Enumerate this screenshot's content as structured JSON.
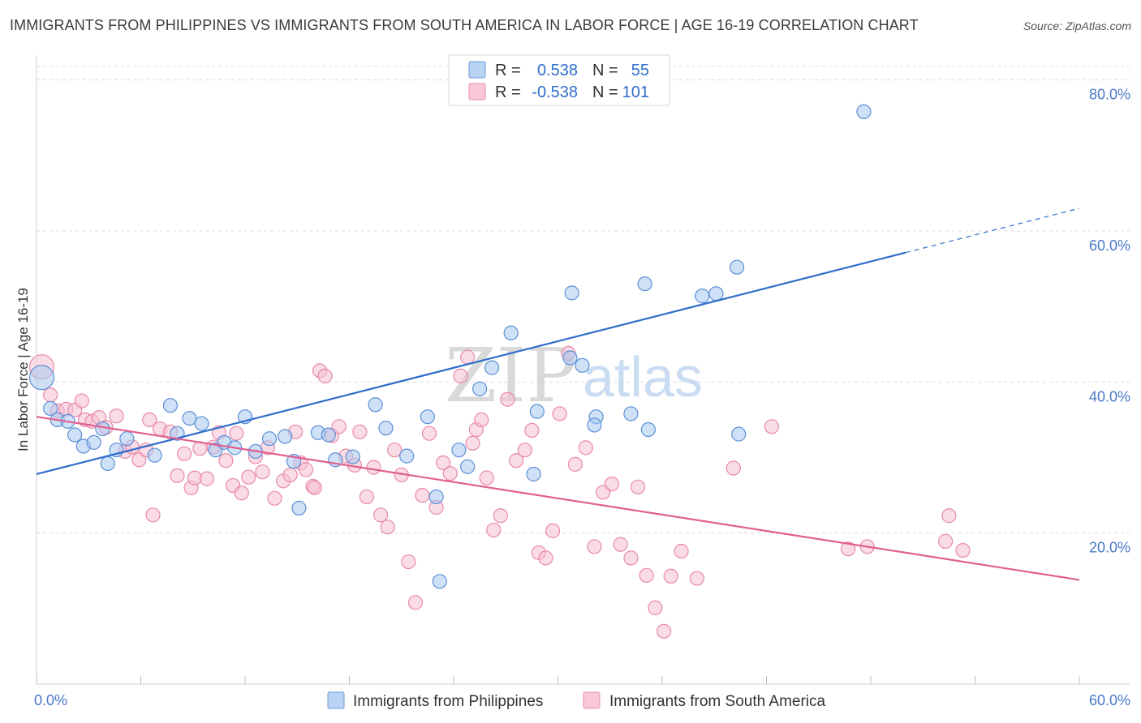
{
  "title": "IMMIGRANTS FROM PHILIPPINES VS IMMIGRANTS FROM SOUTH AMERICA IN LABOR FORCE | AGE 16-19 CORRELATION CHART",
  "source": "Source: ZipAtlas.com",
  "watermark": {
    "part1": "ZIP",
    "part2": "atlas"
  },
  "legend": {
    "rows": [
      {
        "r_label": "R =",
        "r_value": "0.538",
        "n_label": "N =",
        "n_value": "55"
      },
      {
        "r_label": "R =",
        "r_value": "-0.538",
        "n_label": "N =",
        "n_value": "101"
      }
    ]
  },
  "chart_data": {
    "type": "scatter",
    "title": "IMMIGRANTS FROM PHILIPPINES VS IMMIGRANTS FROM SOUTH AMERICA IN LABOR FORCE | AGE 16-19 CORRELATION CHART",
    "xlabel": "",
    "ylabel": "In Labor Force | Age 16-19",
    "xlim": [
      0,
      60
    ],
    "ylim": [
      0,
      82
    ],
    "x_tick_labels": [
      "0.0%",
      "60.0%"
    ],
    "y_ticks": [
      20,
      40,
      60,
      80
    ],
    "y_tick_labels": [
      "20.0%",
      "40.0%",
      "60.0%",
      "80.0%"
    ],
    "grid": true,
    "legend_position": "top-center",
    "series": [
      {
        "name": "Immigrants from Philippines",
        "color": "#a8c8f0",
        "stroke": "#5b8fd6",
        "line_color": "#2f6ecb",
        "trend": {
          "x1": 0,
          "y1": 27.8,
          "x2": 60,
          "y2": 63.0,
          "solid_until": 50
        },
        "points": [
          [
            0.3,
            40.6
          ],
          [
            0.8,
            36.5
          ],
          [
            1.2,
            35.0
          ],
          [
            1.8,
            34.8
          ],
          [
            2.2,
            33.0
          ],
          [
            2.7,
            31.5
          ],
          [
            3.3,
            32.0
          ],
          [
            3.8,
            33.8
          ],
          [
            4.1,
            29.2
          ],
          [
            4.6,
            31.0
          ],
          [
            5.2,
            32.5
          ],
          [
            6.8,
            30.3
          ],
          [
            7.7,
            36.9
          ],
          [
            8.1,
            33.2
          ],
          [
            8.8,
            35.2
          ],
          [
            9.5,
            34.5
          ],
          [
            10.3,
            31.0
          ],
          [
            10.8,
            32.0
          ],
          [
            11.4,
            31.3
          ],
          [
            12.0,
            35.4
          ],
          [
            12.6,
            30.8
          ],
          [
            13.4,
            32.5
          ],
          [
            14.3,
            32.8
          ],
          [
            14.8,
            29.5
          ],
          [
            15.1,
            23.3
          ],
          [
            16.2,
            33.3
          ],
          [
            17.2,
            29.7
          ],
          [
            16.8,
            33.0
          ],
          [
            18.2,
            30.1
          ],
          [
            19.5,
            37.0
          ],
          [
            20.1,
            33.9
          ],
          [
            21.3,
            30.2
          ],
          [
            22.5,
            35.4
          ],
          [
            23.0,
            24.8
          ],
          [
            23.2,
            13.6
          ],
          [
            24.3,
            31.0
          ],
          [
            24.8,
            28.8
          ],
          [
            25.5,
            39.1
          ],
          [
            26.2,
            41.9
          ],
          [
            27.3,
            46.5
          ],
          [
            28.6,
            27.8
          ],
          [
            28.8,
            36.1
          ],
          [
            30.7,
            43.2
          ],
          [
            31.4,
            42.2
          ],
          [
            32.2,
            35.4
          ],
          [
            32.1,
            34.3
          ],
          [
            34.2,
            35.8
          ],
          [
            35.0,
            53.0
          ],
          [
            35.2,
            33.7
          ],
          [
            38.3,
            51.4
          ],
          [
            39.1,
            51.7
          ],
          [
            40.3,
            55.2
          ],
          [
            40.4,
            33.1
          ],
          [
            47.6,
            75.8
          ],
          [
            30.8,
            51.8
          ]
        ]
      },
      {
        "name": "Immigrants from South America",
        "color": "#f6c0d2",
        "stroke": "#e889a9",
        "line_color": "#e0608e",
        "trend": {
          "x1": 0,
          "y1": 35.4,
          "x2": 60,
          "y2": 13.8
        },
        "points": [
          [
            0.3,
            42.0
          ],
          [
            0.8,
            38.3
          ],
          [
            1.2,
            36.2
          ],
          [
            1.7,
            36.4
          ],
          [
            2.2,
            36.3
          ],
          [
            2.6,
            37.5
          ],
          [
            2.8,
            35.0
          ],
          [
            3.2,
            34.8
          ],
          [
            3.6,
            35.3
          ],
          [
            4.0,
            34.0
          ],
          [
            4.6,
            35.5
          ],
          [
            5.1,
            30.8
          ],
          [
            5.5,
            31.4
          ],
          [
            5.9,
            29.7
          ],
          [
            6.3,
            31.0
          ],
          [
            6.5,
            35.0
          ],
          [
            6.7,
            22.4
          ],
          [
            7.1,
            33.8
          ],
          [
            7.7,
            33.4
          ],
          [
            8.1,
            27.6
          ],
          [
            8.5,
            30.5
          ],
          [
            8.9,
            26.0
          ],
          [
            9.1,
            27.3
          ],
          [
            9.4,
            31.2
          ],
          [
            9.8,
            27.2
          ],
          [
            10.2,
            31.4
          ],
          [
            10.5,
            33.3
          ],
          [
            10.9,
            29.6
          ],
          [
            11.3,
            26.3
          ],
          [
            11.5,
            33.2
          ],
          [
            11.8,
            25.3
          ],
          [
            12.2,
            27.4
          ],
          [
            12.6,
            30.1
          ],
          [
            13.0,
            28.1
          ],
          [
            13.3,
            31.3
          ],
          [
            13.7,
            24.6
          ],
          [
            14.2,
            26.9
          ],
          [
            14.6,
            27.7
          ],
          [
            14.9,
            33.4
          ],
          [
            15.2,
            29.3
          ],
          [
            15.5,
            28.4
          ],
          [
            15.9,
            26.2
          ],
          [
            16.3,
            41.5
          ],
          [
            16.6,
            40.8
          ],
          [
            17.0,
            32.9
          ],
          [
            17.4,
            34.1
          ],
          [
            17.8,
            30.2
          ],
          [
            18.3,
            29.0
          ],
          [
            18.6,
            33.4
          ],
          [
            19.0,
            24.8
          ],
          [
            19.4,
            28.7
          ],
          [
            19.8,
            22.4
          ],
          [
            20.2,
            20.8
          ],
          [
            20.6,
            31.0
          ],
          [
            21.0,
            27.7
          ],
          [
            21.4,
            16.2
          ],
          [
            21.8,
            10.8
          ],
          [
            22.2,
            25.0
          ],
          [
            22.6,
            33.2
          ],
          [
            23.0,
            23.4
          ],
          [
            23.4,
            29.3
          ],
          [
            23.8,
            27.9
          ],
          [
            24.4,
            40.8
          ],
          [
            24.8,
            43.3
          ],
          [
            25.1,
            31.9
          ],
          [
            25.3,
            33.7
          ],
          [
            25.6,
            35.0
          ],
          [
            25.9,
            27.3
          ],
          [
            26.3,
            20.4
          ],
          [
            26.7,
            22.3
          ],
          [
            27.1,
            37.7
          ],
          [
            27.6,
            29.6
          ],
          [
            28.1,
            31.0
          ],
          [
            28.5,
            33.6
          ],
          [
            28.9,
            17.4
          ],
          [
            29.3,
            16.7
          ],
          [
            29.7,
            20.3
          ],
          [
            30.1,
            35.8
          ],
          [
            30.6,
            43.8
          ],
          [
            31.0,
            29.1
          ],
          [
            31.6,
            31.3
          ],
          [
            32.1,
            18.2
          ],
          [
            32.6,
            25.4
          ],
          [
            33.1,
            26.5
          ],
          [
            33.6,
            18.5
          ],
          [
            34.2,
            16.7
          ],
          [
            34.6,
            26.1
          ],
          [
            35.1,
            14.4
          ],
          [
            35.6,
            10.1
          ],
          [
            36.1,
            7.0
          ],
          [
            36.5,
            14.3
          ],
          [
            37.1,
            17.6
          ],
          [
            38.0,
            14.0
          ],
          [
            40.1,
            28.6
          ],
          [
            42.3,
            34.1
          ],
          [
            46.7,
            17.9
          ],
          [
            47.8,
            18.2
          ],
          [
            52.3,
            18.9
          ],
          [
            52.5,
            22.3
          ],
          [
            53.3,
            17.7
          ],
          [
            16.0,
            26.0
          ]
        ]
      }
    ]
  }
}
